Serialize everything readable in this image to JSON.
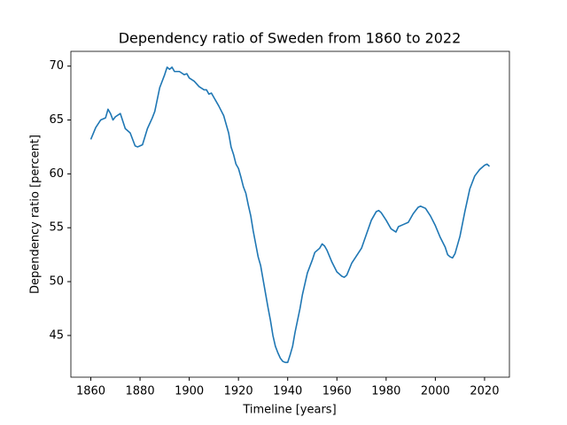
{
  "chart_data": {
    "type": "line",
    "title": "Dependency ratio of Sweden from 1860 to 2022",
    "x_label": "Timeline [years]",
    "y_label": "Dependency ratio [percent]",
    "x": [
      1860,
      1862,
      1864,
      1866,
      1867,
      1868,
      1869,
      1870,
      1872,
      1874,
      1876,
      1878,
      1879,
      1880,
      1881,
      1883,
      1885,
      1886,
      1888,
      1890,
      1891,
      1892,
      1893,
      1894,
      1896,
      1898,
      1899,
      1900,
      1902,
      1904,
      1906,
      1907,
      1908,
      1909,
      1910,
      1912,
      1914,
      1916,
      1917,
      1918,
      1919,
      1920,
      1921,
      1922,
      1923,
      1924,
      1925,
      1926,
      1927,
      1928,
      1929,
      1930,
      1931,
      1932,
      1933,
      1934,
      1935,
      1936,
      1937,
      1938,
      1939,
      1940,
      1941,
      1942,
      1943,
      1944,
      1945,
      1946,
      1948,
      1950,
      1951,
      1953,
      1954,
      1955,
      1956,
      1958,
      1960,
      1962,
      1963,
      1964,
      1966,
      1968,
      1970,
      1972,
      1974,
      1976,
      1977,
      1978,
      1980,
      1982,
      1984,
      1985,
      1987,
      1989,
      1991,
      1993,
      1994,
      1996,
      1998,
      2000,
      2002,
      2004,
      2005,
      2006,
      2007,
      2008,
      2010,
      2012,
      2014,
      2016,
      2018,
      2020,
      2021,
      2022
    ],
    "series": [
      {
        "name": "Dependency ratio",
        "color": "#1f77b4",
        "values": [
          63.2,
          64.3,
          65.0,
          65.2,
          66.0,
          65.6,
          65.0,
          65.3,
          65.6,
          64.2,
          63.8,
          62.6,
          62.5,
          62.6,
          62.7,
          64.2,
          65.2,
          65.8,
          68.0,
          69.2,
          69.9,
          69.7,
          69.9,
          69.5,
          69.5,
          69.2,
          69.3,
          68.9,
          68.6,
          68.1,
          67.8,
          67.8,
          67.4,
          67.5,
          67.1,
          66.3,
          65.4,
          63.8,
          62.5,
          61.8,
          60.9,
          60.5,
          59.7,
          58.8,
          58.2,
          57.1,
          56.1,
          54.7,
          53.5,
          52.3,
          51.5,
          50.2,
          48.9,
          47.6,
          46.4,
          45.0,
          44.0,
          43.4,
          42.9,
          42.6,
          42.5,
          42.5,
          43.2,
          44.0,
          45.3,
          46.4,
          47.5,
          48.8,
          50.8,
          52.0,
          52.7,
          53.1,
          53.5,
          53.3,
          52.9,
          51.8,
          50.9,
          50.5,
          50.4,
          50.6,
          51.7,
          52.4,
          53.1,
          54.4,
          55.7,
          56.5,
          56.6,
          56.4,
          55.7,
          54.9,
          54.6,
          55.1,
          55.3,
          55.5,
          56.3,
          56.9,
          57.0,
          56.8,
          56.1,
          55.2,
          54.1,
          53.2,
          52.5,
          52.3,
          52.2,
          52.6,
          54.2,
          56.5,
          58.6,
          59.8,
          60.4,
          60.8,
          60.9,
          60.7
        ]
      }
    ],
    "xlim": [
      1851.9,
      2030.1
    ],
    "ylim": [
      41.13,
      71.37
    ],
    "xticks": [
      1860,
      1880,
      1900,
      1920,
      1940,
      1960,
      1980,
      2000,
      2020
    ],
    "yticks": [
      45,
      50,
      55,
      60,
      65,
      70
    ],
    "grid": false
  }
}
